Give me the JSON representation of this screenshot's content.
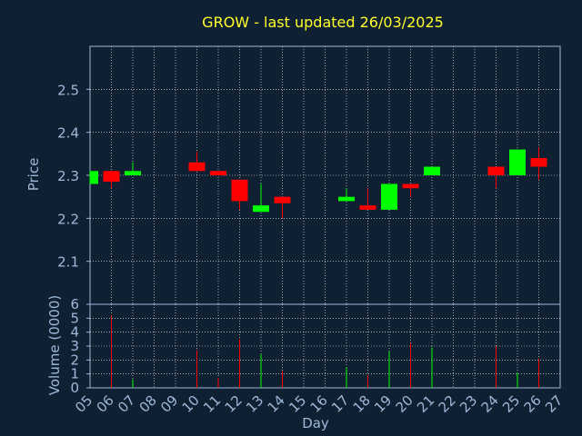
{
  "chart_data": {
    "type": "candlestick",
    "title": "GROW - last updated 26/03/2025",
    "xlabel": "Day",
    "colors": {
      "up": "#00ff00",
      "down": "#ff0000",
      "background": "#0f2033",
      "title": "#ffff2a",
      "tick_text": "#9fb8d8"
    },
    "grid": true,
    "x_ticks": [
      "05",
      "06",
      "07",
      "08",
      "09",
      "10",
      "11",
      "12",
      "13",
      "14",
      "15",
      "16",
      "17",
      "18",
      "19",
      "20",
      "21",
      "22",
      "23",
      "24",
      "25",
      "26",
      "27"
    ],
    "price_panel": {
      "ylabel": "Price",
      "ylim": [
        2.0,
        2.6
      ],
      "y_ticks": [
        2.1,
        2.2,
        2.3,
        2.4,
        2.5
      ],
      "y_tick_labels": [
        "2.1",
        "2.2",
        "2.3",
        "2.4",
        "2.5"
      ]
    },
    "volume_panel": {
      "ylabel": "Volume (0000)",
      "ylim": [
        0,
        6
      ],
      "y_ticks": [
        0,
        1,
        2,
        3,
        4,
        5,
        6
      ],
      "y_tick_labels": [
        "0",
        "1",
        "2",
        "3",
        "4",
        "5",
        "6"
      ]
    },
    "candles": [
      {
        "day": "05",
        "open": 2.28,
        "close": 2.31,
        "high": 2.31,
        "low": 2.28,
        "volume": 0.0
      },
      {
        "day": "06",
        "open": 2.31,
        "close": 2.285,
        "high": 2.31,
        "low": 2.27,
        "volume": 5.2
      },
      {
        "day": "07",
        "open": 2.3,
        "close": 2.31,
        "high": 2.33,
        "low": 2.3,
        "volume": 0.6
      },
      {
        "day": "10",
        "open": 2.33,
        "close": 2.31,
        "high": 2.355,
        "low": 2.31,
        "volume": 2.7
      },
      {
        "day": "11",
        "open": 2.31,
        "close": 2.3,
        "high": 2.31,
        "low": 2.3,
        "volume": 0.7
      },
      {
        "day": "12",
        "open": 2.29,
        "close": 2.24,
        "high": 2.29,
        "low": 2.22,
        "volume": 3.5
      },
      {
        "day": "13",
        "open": 2.215,
        "close": 2.23,
        "high": 2.28,
        "low": 2.215,
        "volume": 2.4
      },
      {
        "day": "14",
        "open": 2.25,
        "close": 2.235,
        "high": 2.25,
        "low": 2.2,
        "volume": 1.2
      },
      {
        "day": "17",
        "open": 2.24,
        "close": 2.25,
        "high": 2.27,
        "low": 2.24,
        "volume": 1.5
      },
      {
        "day": "18",
        "open": 2.23,
        "close": 2.22,
        "high": 2.27,
        "low": 2.22,
        "volume": 0.9
      },
      {
        "day": "19",
        "open": 2.22,
        "close": 2.28,
        "high": 2.28,
        "low": 2.22,
        "volume": 2.6
      },
      {
        "day": "20",
        "open": 2.28,
        "close": 2.27,
        "high": 2.28,
        "low": 2.25,
        "volume": 3.2
      },
      {
        "day": "21",
        "open": 2.3,
        "close": 2.32,
        "high": 2.32,
        "low": 2.3,
        "volume": 2.9
      },
      {
        "day": "24",
        "open": 2.32,
        "close": 2.3,
        "high": 2.32,
        "low": 2.27,
        "volume": 3.0
      },
      {
        "day": "25",
        "open": 2.3,
        "close": 2.36,
        "high": 2.36,
        "low": 2.3,
        "volume": 1.1
      },
      {
        "day": "26",
        "open": 2.34,
        "close": 2.32,
        "high": 2.365,
        "low": 2.29,
        "volume": 2.1
      }
    ]
  }
}
